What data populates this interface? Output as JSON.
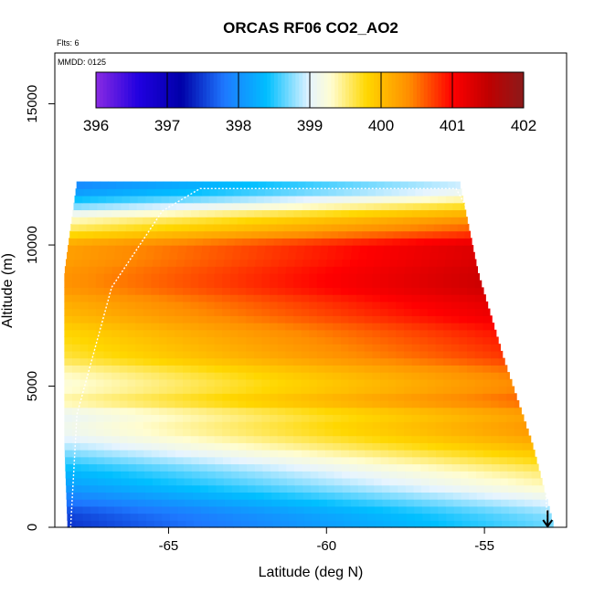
{
  "chart_data": {
    "type": "heatmap",
    "title": "ORCAS RF06 CO2_AO2",
    "xlabel": "Latitude (deg N)",
    "ylabel": "Altitude (m)",
    "annotations": {
      "flights": "Flts: 6",
      "date": "MMDD: 0125"
    },
    "xlim": [
      -68.6,
      -52.4
    ],
    "ylim": [
      0,
      16800
    ],
    "x_ticks": [
      -65,
      -60,
      -55
    ],
    "x_tick_labels": [
      "-65",
      "-60",
      "-55"
    ],
    "y_ticks": [
      0,
      5000,
      10000,
      15000
    ],
    "y_tick_labels": [
      "0",
      "5000",
      "10000",
      "15000"
    ],
    "colorbar": {
      "ticks": [
        396,
        397,
        398,
        399,
        400,
        401,
        402
      ],
      "tick_labels": [
        "396",
        "397",
        "398",
        "399",
        "400",
        "401",
        "402"
      ],
      "range": [
        396,
        402
      ],
      "stops": [
        {
          "value": 396.0,
          "color": "#8a2be2"
        },
        {
          "value": 396.6,
          "color": "#2000e0"
        },
        {
          "value": 397.2,
          "color": "#0000a8"
        },
        {
          "value": 397.8,
          "color": "#1e78ff"
        },
        {
          "value": 398.4,
          "color": "#00bfff"
        },
        {
          "value": 399.0,
          "color": "#e6f4ff"
        },
        {
          "value": 399.3,
          "color": "#fffdd0"
        },
        {
          "value": 399.8,
          "color": "#ffd700"
        },
        {
          "value": 400.4,
          "color": "#ff8c00"
        },
        {
          "value": 401.0,
          "color": "#ff0000"
        },
        {
          "value": 401.5,
          "color": "#c00000"
        },
        {
          "value": 402.0,
          "color": "#8b1a1a"
        }
      ]
    },
    "grid": {
      "lat_bin_deg": 0.25,
      "alt_bin_m": 250,
      "co2_profile": {
        "altitude_m": [
          0,
          500,
          1000,
          1500,
          2000,
          2500,
          3000,
          3500,
          4000,
          4500,
          5000,
          5500,
          6000,
          6500,
          7000,
          7500,
          8000,
          8500,
          9000,
          9500,
          10000,
          10500,
          11000,
          11500,
          12000
        ],
        "co2_ppm": [
          398.1,
          398.2,
          398.5,
          398.8,
          399.0,
          399.3,
          399.6,
          399.8,
          399.7,
          400.1,
          399.9,
          400.0,
          400.3,
          400.4,
          400.5,
          400.7,
          400.8,
          401.0,
          401.0,
          400.9,
          400.9,
          400.3,
          399.9,
          399.2,
          398.6
        ]
      },
      "latitude_gradient_ppm_per_deg": 0.08,
      "reference_latitude": -60,
      "extent_by_altitude": [
        {
          "altitude_m": 0,
          "lat_min": -68.2,
          "lat_max": -52.8
        },
        {
          "altitude_m": 3000,
          "lat_min": -68.3,
          "lat_max": -53.5
        },
        {
          "altitude_m": 6000,
          "lat_min": -68.3,
          "lat_max": -54.4
        },
        {
          "altitude_m": 9000,
          "lat_min": -68.3,
          "lat_max": -55.2
        },
        {
          "altitude_m": 12250,
          "lat_min": -67.9,
          "lat_max": -55.8
        }
      ]
    },
    "flight_track": {
      "latitude": [
        -68.1,
        -67.9,
        -66.8,
        -65.2,
        -64.0,
        -63.7,
        -55.9,
        -55.4,
        -54.2,
        -53.1,
        -53.0
      ],
      "altitude_m": [
        0,
        4000,
        8500,
        11200,
        12000,
        12000,
        12000,
        11000,
        7500,
        2000,
        0
      ]
    },
    "arrow_marker": {
      "latitude": -53.0,
      "altitude_m": 600
    }
  }
}
